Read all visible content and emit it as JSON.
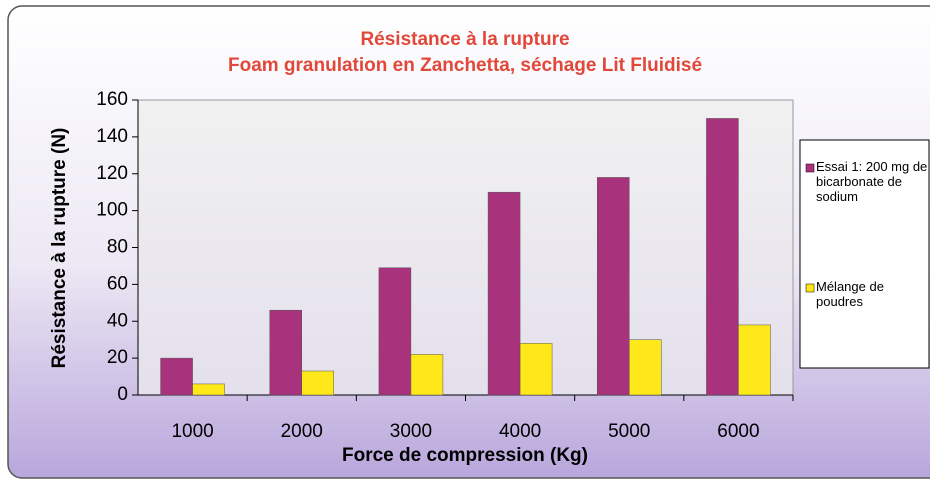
{
  "chart_data": {
    "type": "bar",
    "title": "Résistance à la rupture",
    "subtitle": "Foam granulation en Zanchetta, séchage Lit Fluidisé",
    "x_label": "Force de compression (Kg)",
    "y_label": "Résistance à la rupture (N)",
    "categories": [
      "1000",
      "2000",
      "3000",
      "4000",
      "5000",
      "6000"
    ],
    "series": [
      {
        "name": "Essai 1: 200 mg de bicarbonate de sodium",
        "color": "#a8327c",
        "values": [
          20,
          46,
          69,
          110,
          118,
          150
        ]
      },
      {
        "name": "Mélange de poudres",
        "color": "#ffe81a",
        "values": [
          6,
          13,
          22,
          28,
          30,
          38
        ]
      }
    ],
    "ylim": [
      0,
      160
    ],
    "yticks": [
      0,
      20,
      40,
      60,
      80,
      100,
      120,
      140,
      160
    ],
    "legend": "right"
  }
}
